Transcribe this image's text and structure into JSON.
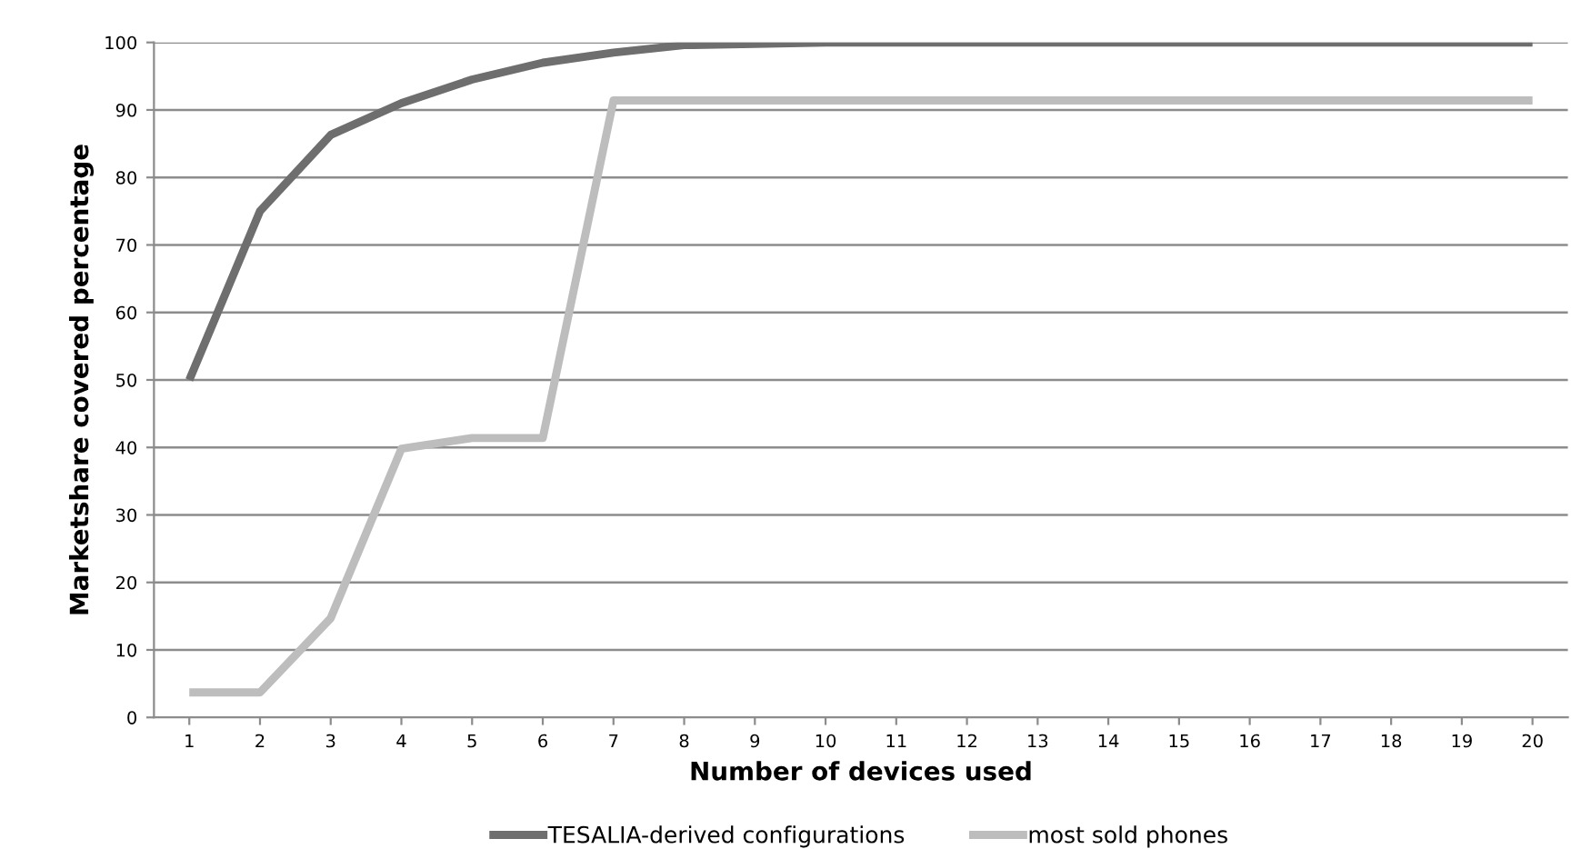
{
  "chart_data": {
    "type": "line",
    "categories": [
      "1",
      "2",
      "3",
      "4",
      "5",
      "6",
      "7",
      "8",
      "9",
      "10",
      "11",
      "12",
      "13",
      "14",
      "15",
      "16",
      "17",
      "18",
      "19",
      "20"
    ],
    "series": [
      {
        "name": "TESALIA-derived configurations",
        "color": "#6e6e6e",
        "values": [
          50,
          75,
          86.3,
          91,
          94.5,
          97,
          98.5,
          99.6,
          99.8,
          100,
          100,
          100,
          100,
          100,
          100,
          100,
          100,
          100,
          100,
          100
        ]
      },
      {
        "name": "most sold phones",
        "color": "#bdbdbd",
        "values": [
          3.7,
          3.7,
          14.7,
          39.8,
          41.4,
          41.4,
          91.4,
          91.4,
          91.4,
          91.4,
          91.4,
          91.4,
          91.4,
          91.4,
          91.4,
          91.4,
          91.4,
          91.4,
          91.4,
          91.4
        ]
      }
    ],
    "xlabel": "Number of devices used",
    "ylabel": "Marketshare covered percentage",
    "ylim": [
      0,
      100
    ],
    "yticks": [
      0,
      10,
      20,
      30,
      40,
      50,
      60,
      70,
      80,
      90,
      100
    ],
    "grid": "y",
    "legend": "bottom",
    "marker": "none",
    "line_style": "solid"
  }
}
